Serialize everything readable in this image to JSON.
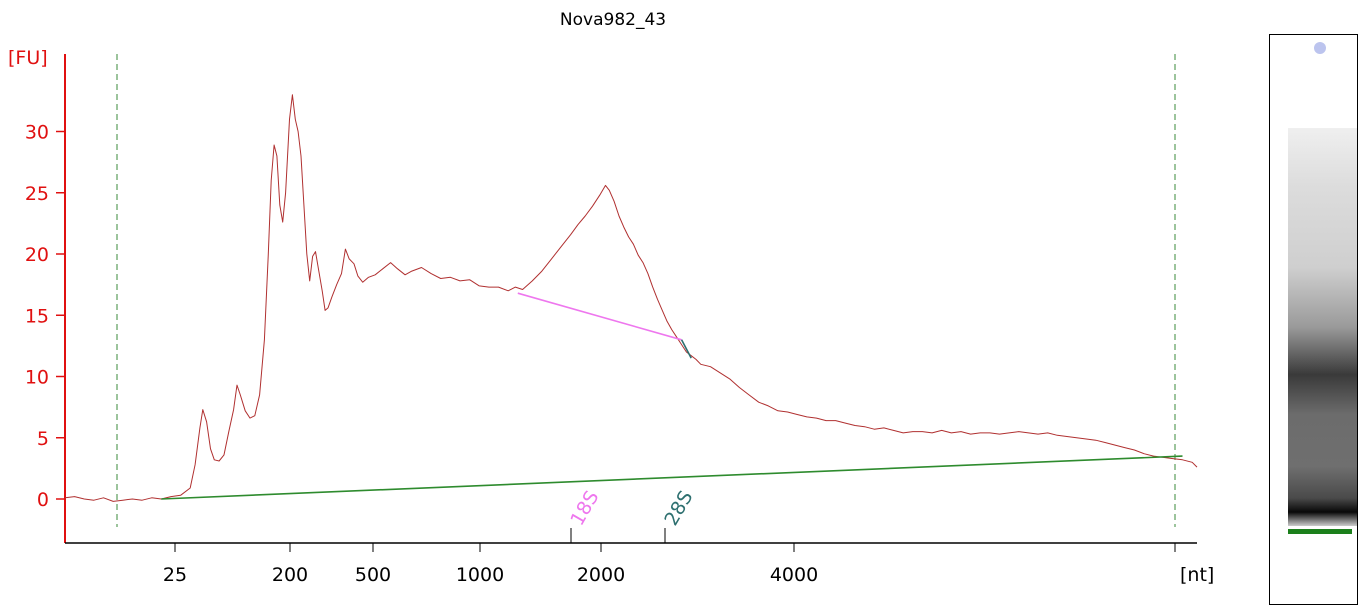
{
  "chart_data": {
    "type": "line",
    "title": "Nova982_43",
    "ylabel": "[FU]",
    "xlabel": "[nt]",
    "ylim": [
      -3.5,
      37
    ],
    "y_ticks": [
      "0",
      "5",
      "10",
      "15",
      "20",
      "25",
      "30"
    ],
    "y_tick_values": [
      0,
      5,
      10,
      15,
      20,
      25,
      30
    ],
    "x_ticks": [
      "25",
      "200",
      "500",
      "1000",
      "2000",
      "4000"
    ],
    "markers": [
      {
        "label": "18S",
        "color": "#ee77ee"
      },
      {
        "label": "28S",
        "color": "#2e7070"
      }
    ],
    "series": [
      {
        "color": "#b03030",
        "points": [
          [
            0,
            0.1
          ],
          [
            2,
            0.2
          ],
          [
            4,
            0.0
          ],
          [
            6,
            -0.1
          ],
          [
            8,
            0.1
          ],
          [
            10,
            -0.2
          ],
          [
            12,
            -0.1
          ],
          [
            14,
            0.0
          ],
          [
            16,
            -0.1
          ],
          [
            18,
            0.1
          ],
          [
            20,
            0.0
          ],
          [
            22,
            0.2
          ],
          [
            24,
            0.3
          ],
          [
            26,
            0.9
          ],
          [
            27,
            2.8
          ],
          [
            28,
            5.8
          ],
          [
            28.6,
            7.3
          ],
          [
            29.4,
            6.3
          ],
          [
            30.2,
            4.1
          ],
          [
            31,
            3.2
          ],
          [
            32,
            3.1
          ],
          [
            33,
            3.6
          ],
          [
            34,
            5.5
          ],
          [
            35,
            7.3
          ],
          [
            35.7,
            9.3
          ],
          [
            36.4,
            8.5
          ],
          [
            37.4,
            7.2
          ],
          [
            38.4,
            6.6
          ],
          [
            39.4,
            6.8
          ],
          [
            40.4,
            8.5
          ],
          [
            41.4,
            13
          ],
          [
            42.2,
            20
          ],
          [
            42.8,
            26
          ],
          [
            43.4,
            28.9
          ],
          [
            44,
            28
          ],
          [
            44.6,
            24
          ],
          [
            45.2,
            22.6
          ],
          [
            45.8,
            25
          ],
          [
            46.6,
            31
          ],
          [
            47.2,
            33
          ],
          [
            47.8,
            31
          ],
          [
            48.4,
            30
          ],
          [
            49,
            28
          ],
          [
            49.6,
            24
          ],
          [
            50.2,
            20
          ],
          [
            50.8,
            17.8
          ],
          [
            51.4,
            19.8
          ],
          [
            52,
            20.2
          ],
          [
            52.6,
            18.8
          ],
          [
            53.4,
            17
          ],
          [
            54,
            15.4
          ],
          [
            54.6,
            15.6
          ],
          [
            55.4,
            16.5
          ],
          [
            56.4,
            17.5
          ],
          [
            57.4,
            18.4
          ],
          [
            58.2,
            20.4
          ],
          [
            59,
            19.6
          ],
          [
            60,
            19.2
          ],
          [
            60.8,
            18.2
          ],
          [
            61.8,
            17.7
          ],
          [
            63,
            18.1
          ],
          [
            64.4,
            18.3
          ],
          [
            66,
            18.8
          ],
          [
            67.6,
            19.3
          ],
          [
            69,
            18.8
          ],
          [
            70.6,
            18.3
          ],
          [
            72,
            18.6
          ],
          [
            74,
            18.9
          ],
          [
            76,
            18.4
          ],
          [
            78,
            18.0
          ],
          [
            80,
            18.1
          ],
          [
            82,
            17.8
          ],
          [
            84,
            17.9
          ],
          [
            86,
            17.4
          ],
          [
            88,
            17.3
          ],
          [
            90,
            17.3
          ],
          [
            92,
            17.0
          ],
          [
            93.5,
            17.3
          ],
          [
            95,
            17.1
          ],
          [
            97,
            17.8
          ],
          [
            99,
            18.6
          ],
          [
            101,
            19.6
          ],
          [
            103,
            20.6
          ],
          [
            105,
            21.6
          ],
          [
            106.5,
            22.4
          ],
          [
            108,
            23.1
          ],
          [
            109.5,
            23.9
          ],
          [
            111,
            24.8
          ],
          [
            112.2,
            25.6
          ],
          [
            113,
            25.2
          ],
          [
            114,
            24.3
          ],
          [
            115,
            23.1
          ],
          [
            116,
            22.2
          ],
          [
            117,
            21.4
          ],
          [
            118,
            20.8
          ],
          [
            119,
            19.9
          ],
          [
            120,
            19.3
          ],
          [
            121,
            18.4
          ],
          [
            122,
            17.3
          ],
          [
            123,
            16.3
          ],
          [
            124,
            15.4
          ],
          [
            125,
            14.5
          ],
          [
            126,
            13.8
          ],
          [
            127,
            13.2
          ],
          [
            128,
            12.6
          ],
          [
            129,
            12.0
          ],
          [
            130,
            11.7
          ],
          [
            131,
            11.4
          ],
          [
            132,
            11.0
          ],
          [
            134,
            10.8
          ],
          [
            136,
            10.3
          ],
          [
            138,
            9.8
          ],
          [
            140,
            9.1
          ],
          [
            142,
            8.5
          ],
          [
            144,
            7.9
          ],
          [
            146,
            7.6
          ],
          [
            148,
            7.2
          ],
          [
            150,
            7.1
          ],
          [
            152,
            6.9
          ],
          [
            154,
            6.7
          ],
          [
            156,
            6.6
          ],
          [
            158,
            6.4
          ],
          [
            160,
            6.4
          ],
          [
            162,
            6.2
          ],
          [
            164,
            6.0
          ],
          [
            166,
            5.9
          ],
          [
            168,
            5.7
          ],
          [
            170,
            5.8
          ],
          [
            172,
            5.6
          ],
          [
            174,
            5.4
          ],
          [
            176,
            5.5
          ],
          [
            178,
            5.5
          ],
          [
            180,
            5.4
          ],
          [
            182,
            5.6
          ],
          [
            184,
            5.4
          ],
          [
            186,
            5.5
          ],
          [
            188,
            5.3
          ],
          [
            190,
            5.4
          ],
          [
            192,
            5.4
          ],
          [
            194,
            5.3
          ],
          [
            196,
            5.4
          ],
          [
            198,
            5.5
          ],
          [
            200,
            5.4
          ],
          [
            202,
            5.3
          ],
          [
            204,
            5.4
          ],
          [
            206,
            5.2
          ],
          [
            208,
            5.1
          ],
          [
            210,
            5.0
          ],
          [
            212,
            4.9
          ],
          [
            214,
            4.8
          ],
          [
            216,
            4.6
          ],
          [
            218,
            4.4
          ],
          [
            220,
            4.2
          ],
          [
            222,
            4.0
          ],
          [
            224,
            3.7
          ],
          [
            226,
            3.5
          ],
          [
            228,
            3.4
          ],
          [
            230,
            3.3
          ],
          [
            232,
            3.2
          ],
          [
            234,
            3.0
          ],
          [
            235,
            2.6
          ]
        ]
      },
      {
        "color": "#2e8b2e",
        "points": [
          [
            20,
            0.0
          ],
          [
            232,
            3.5
          ]
        ]
      },
      {
        "color": "#ee77ee",
        "points": [
          [
            94,
            16.8
          ],
          [
            128,
            13.0
          ]
        ]
      },
      {
        "color": "#2e7070",
        "points": [
          [
            128,
            13.0
          ],
          [
            130,
            11.5
          ]
        ]
      }
    ],
    "grid": false,
    "legend": "none"
  }
}
